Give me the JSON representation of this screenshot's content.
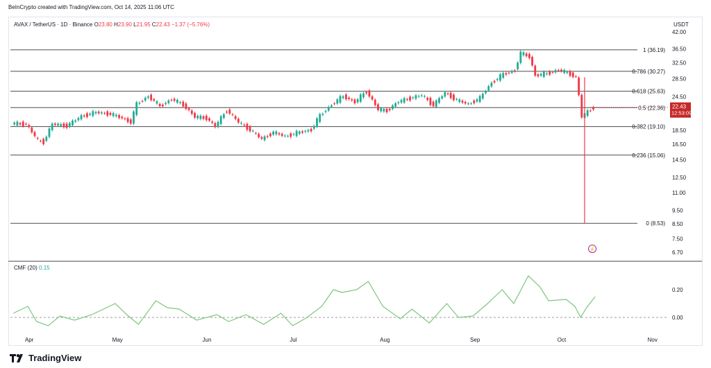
{
  "header": {
    "attribution": "BeInCrypto created with TradingView.com, Oct 14, 2025 11:06 UTC"
  },
  "legend": {
    "symbol": "AVAX / TetherUS · 1D · Binance",
    "o_label": "O",
    "o_value": "23.80",
    "h_label": "H",
    "h_value": "23.90",
    "l_label": "L",
    "l_value": "21.95",
    "c_label": "C",
    "c_value": "22.43",
    "change": "−1.37 (−5.76%)"
  },
  "price_axis": {
    "unit": "USDT"
  },
  "indicator": {
    "label": "CMF (20)",
    "value": "0.15"
  },
  "footer": {
    "brand": "TradingView"
  },
  "colors": {
    "up": "#22ab94",
    "down": "#f23645",
    "fib": "#4a4a4a",
    "cmf": "#7bc67b",
    "price_tag": "#c62828",
    "badge": "#9c27b0"
  },
  "chart_data": {
    "type": "candlestick",
    "title": "AVAX / TetherUS · 1D · Binance",
    "x_range": [
      "2025-03-27",
      "2025-11-08"
    ],
    "x_ticks": [
      {
        "date": "2025-04-01",
        "label": "Apr"
      },
      {
        "date": "2025-05-01",
        "label": "May"
      },
      {
        "date": "2025-06-01",
        "label": "Jun"
      },
      {
        "date": "2025-07-01",
        "label": "Jul"
      },
      {
        "date": "2025-08-01",
        "label": "Aug"
      },
      {
        "date": "2025-09-01",
        "label": "Sep"
      },
      {
        "date": "2025-10-01",
        "label": "Oct"
      },
      {
        "date": "2025-11-01",
        "label": "Nov"
      }
    ],
    "y_scale": "log",
    "y_range": [
      6.4,
      43.0
    ],
    "y_ticks": [
      "42.00",
      "36.50",
      "32.50",
      "28.50",
      "24.50",
      "21.00",
      "18.50",
      "16.50",
      "14.50",
      "12.50",
      "11.00",
      "9.50",
      "8.50",
      "7.50",
      "6.70"
    ],
    "fib_levels": [
      {
        "ratio": "1",
        "price": 36.19,
        "label": "1 (36.19)"
      },
      {
        "ratio": "0.786",
        "price": 30.27,
        "label": "0.786 (30.27)"
      },
      {
        "ratio": "0.618",
        "price": 25.63,
        "label": "0.618 (25.63)"
      },
      {
        "ratio": "0.5",
        "price": 22.36,
        "label": "0.5 (22.36)"
      },
      {
        "ratio": "0.382",
        "price": 19.1,
        "label": "0.382 (19.10)"
      },
      {
        "ratio": "0.236",
        "price": 15.06,
        "label": "0.236 (15.06)"
      },
      {
        "ratio": "0",
        "price": 8.53,
        "label": "0 (8.53)"
      }
    ],
    "last_price": {
      "value": "22.43",
      "countdown": "12:53:09"
    },
    "close_series": [
      [
        "2025-03-28",
        19.6
      ],
      [
        "2025-04-02",
        19.5
      ],
      [
        "2025-04-06",
        17.0
      ],
      [
        "2025-04-08",
        16.8
      ],
      [
        "2025-04-11",
        19.5
      ],
      [
        "2025-04-16",
        19.2
      ],
      [
        "2025-04-21",
        20.8
      ],
      [
        "2025-04-26",
        21.5
      ],
      [
        "2025-05-01",
        21.2
      ],
      [
        "2025-05-05",
        20.5
      ],
      [
        "2025-05-08",
        19.8
      ],
      [
        "2025-05-10",
        23.0
      ],
      [
        "2025-05-14",
        24.6
      ],
      [
        "2025-05-18",
        22.6
      ],
      [
        "2025-05-22",
        24.0
      ],
      [
        "2025-05-26",
        22.9
      ],
      [
        "2025-05-30",
        20.7
      ],
      [
        "2025-06-03",
        20.5
      ],
      [
        "2025-06-06",
        19.1
      ],
      [
        "2025-06-10",
        21.9
      ],
      [
        "2025-06-14",
        19.8
      ],
      [
        "2025-06-18",
        18.6
      ],
      [
        "2025-06-22",
        17.2
      ],
      [
        "2025-06-26",
        18.2
      ],
      [
        "2025-06-30",
        17.6
      ],
      [
        "2025-07-04",
        18.1
      ],
      [
        "2025-07-09",
        18.6
      ],
      [
        "2025-07-12",
        20.9
      ],
      [
        "2025-07-16",
        22.9
      ],
      [
        "2025-07-20",
        24.6
      ],
      [
        "2025-07-24",
        23.4
      ],
      [
        "2025-07-28",
        25.6
      ],
      [
        "2025-08-01",
        22.0
      ],
      [
        "2025-08-04",
        21.8
      ],
      [
        "2025-08-08",
        23.5
      ],
      [
        "2025-08-12",
        24.2
      ],
      [
        "2025-08-16",
        24.8
      ],
      [
        "2025-08-20",
        22.8
      ],
      [
        "2025-08-24",
        25.3
      ],
      [
        "2025-08-28",
        23.8
      ],
      [
        "2025-09-01",
        23.0
      ],
      [
        "2025-09-05",
        24.2
      ],
      [
        "2025-09-09",
        27.5
      ],
      [
        "2025-09-13",
        29.5
      ],
      [
        "2025-09-17",
        30.5
      ],
      [
        "2025-09-19",
        35.2
      ],
      [
        "2025-09-22",
        34.2
      ],
      [
        "2025-09-24",
        29.2
      ],
      [
        "2025-09-28",
        29.7
      ],
      [
        "2025-10-02",
        30.6
      ],
      [
        "2025-10-06",
        29.6
      ],
      [
        "2025-10-08",
        28.8
      ],
      [
        "2025-10-10",
        20.7
      ],
      [
        "2025-10-12",
        21.6
      ],
      [
        "2025-10-14",
        22.43
      ]
    ],
    "crash_wick_low": 8.53,
    "cmf": {
      "name": "CMF (20)",
      "y_range": [
        -0.06,
        0.33
      ],
      "y_ticks": [
        "0.20",
        "0.00"
      ],
      "zero_line": 0.0,
      "series": [
        [
          "2025-03-28",
          0.03
        ],
        [
          "2025-04-02",
          0.08
        ],
        [
          "2025-04-05",
          -0.03
        ],
        [
          "2025-04-09",
          -0.06
        ],
        [
          "2025-04-13",
          0.01
        ],
        [
          "2025-04-18",
          -0.02
        ],
        [
          "2025-04-24",
          0.02
        ],
        [
          "2025-04-28",
          0.06
        ],
        [
          "2025-05-02",
          0.1
        ],
        [
          "2025-05-06",
          0.02
        ],
        [
          "2025-05-10",
          -0.05
        ],
        [
          "2025-05-16",
          0.12
        ],
        [
          "2025-05-20",
          0.07
        ],
        [
          "2025-05-24",
          0.06
        ],
        [
          "2025-05-30",
          -0.02
        ],
        [
          "2025-06-06",
          0.02
        ],
        [
          "2025-06-10",
          -0.03
        ],
        [
          "2025-06-16",
          0.02
        ],
        [
          "2025-06-22",
          -0.05
        ],
        [
          "2025-06-28",
          0.03
        ],
        [
          "2025-07-02",
          -0.06
        ],
        [
          "2025-07-07",
          0.0
        ],
        [
          "2025-07-12",
          0.08
        ],
        [
          "2025-07-16",
          0.2
        ],
        [
          "2025-07-19",
          0.18
        ],
        [
          "2025-07-24",
          0.2
        ],
        [
          "2025-07-28",
          0.26
        ],
        [
          "2025-08-02",
          0.08
        ],
        [
          "2025-08-08",
          -0.01
        ],
        [
          "2025-08-12",
          0.06
        ],
        [
          "2025-08-18",
          -0.04
        ],
        [
          "2025-08-24",
          0.1
        ],
        [
          "2025-08-28",
          0.0
        ],
        [
          "2025-09-02",
          0.01
        ],
        [
          "2025-09-07",
          0.1
        ],
        [
          "2025-09-12",
          0.2
        ],
        [
          "2025-09-16",
          0.1
        ],
        [
          "2025-09-21",
          0.3
        ],
        [
          "2025-09-25",
          0.22
        ],
        [
          "2025-09-28",
          0.12
        ],
        [
          "2025-10-04",
          0.13
        ],
        [
          "2025-10-07",
          0.08
        ],
        [
          "2025-10-09",
          0.0
        ],
        [
          "2025-10-11",
          0.07
        ],
        [
          "2025-10-14",
          0.15
        ]
      ]
    }
  }
}
